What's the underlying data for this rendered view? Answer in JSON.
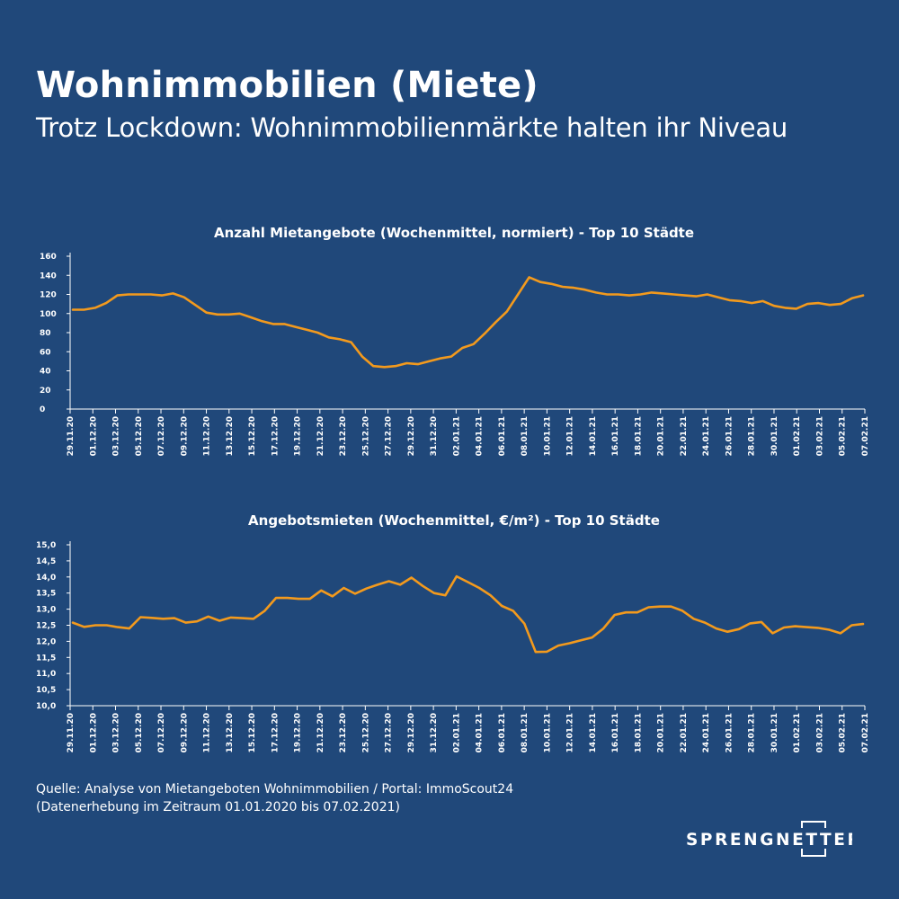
{
  "header": {
    "title": "Wohnimmobilien (Miete)",
    "subtitle": "Trotz Lockdown: Wohnimmobilienmärkte halten ihr Niveau"
  },
  "footer": {
    "source_line1": "Quelle: Analyse von Mietangeboten Wohnimmobilien / Portal: ImmoScout24",
    "source_line2": "(Datenerhebung im Zeitraum 01.01.2020 bis  07.02.2021)",
    "logo_text": "SPRENGNETTER"
  },
  "colors": {
    "background": "#20487a",
    "line": "#f39a1d",
    "text": "#ffffff",
    "axis": "#ffffff"
  },
  "chart_data": [
    {
      "type": "line",
      "title": "Anzahl Mietangebote (Wochenmittel, normiert) - Top 10 Städte",
      "xlabel": "",
      "ylabel": "",
      "ylim": [
        0,
        160
      ],
      "yticks": [
        "0",
        "20",
        "40",
        "60",
        "80",
        "100",
        "120",
        "140",
        "160"
      ],
      "xticks": [
        "29.11.20",
        "01.12.20",
        "03.12.20",
        "05.12.20",
        "07.12.20",
        "09.12.20",
        "11.12.20",
        "13.12.20",
        "15.12.20",
        "17.12.20",
        "19.12.20",
        "21.12.20",
        "23.12.20",
        "25.12.20",
        "27.12.20",
        "29.12.20",
        "31.12.20",
        "02.01.21",
        "04.01.21",
        "06.01.21",
        "08.01.21",
        "10.01.21",
        "12.01.21",
        "14.01.21",
        "16.01.21",
        "18.01.21",
        "20.01.21",
        "22.01.21",
        "24.01.21",
        "26.01.21",
        "28.01.21",
        "30.01.21",
        "01.02.21",
        "03.02.21",
        "05.02.21",
        "07.02.21"
      ],
      "grid": false,
      "series": [
        {
          "values": [
            104,
            104,
            106,
            111,
            119,
            120,
            120,
            120,
            119,
            121,
            117,
            109,
            101,
            99,
            99,
            100,
            96,
            92,
            89,
            89,
            86,
            83,
            80,
            75,
            73,
            70,
            55,
            45,
            44,
            45,
            48,
            47,
            50,
            53,
            55,
            64,
            68,
            79,
            91,
            102,
            120,
            138,
            133,
            131,
            128,
            127,
            125,
            122,
            120,
            120,
            119,
            120,
            122,
            121,
            120,
            119,
            118,
            120,
            117,
            114,
            113,
            111,
            113,
            108,
            106,
            105,
            110,
            111,
            109,
            110,
            116,
            119
          ]
        }
      ]
    },
    {
      "type": "line",
      "title": "Angebotsmieten (Wochenmittel, €/m²) - Top 10 Städte",
      "xlabel": "",
      "ylabel": "",
      "ylim": [
        10.0,
        15.0
      ],
      "yticks": [
        "10,0",
        "10,5",
        "11,0",
        "11,5",
        "12,0",
        "12,5",
        "13,0",
        "13,5",
        "14,0",
        "14,5",
        "15,0"
      ],
      "xticks": [
        "29.11.20",
        "01.12.20",
        "03.12.20",
        "05.12.20",
        "07.12.20",
        "09.12.20",
        "11.12.20",
        "13.12.20",
        "15.12.20",
        "17.12.20",
        "19.12.20",
        "21.12.20",
        "23.12.20",
        "25.12.20",
        "27.12.20",
        "29.12.20",
        "31.12.20",
        "02.01.21",
        "04.01.21",
        "06.01.21",
        "08.01.21",
        "10.01.21",
        "12.01.21",
        "14.01.21",
        "16.01.21",
        "18.01.21",
        "20.01.21",
        "22.01.21",
        "24.01.21",
        "26.01.21",
        "28.01.21",
        "30.01.21",
        "01.02.21",
        "03.02.21",
        "05.02.21",
        "07.02.21"
      ],
      "grid": false,
      "series": [
        {
          "values": [
            12.58,
            12.45,
            12.5,
            12.5,
            12.44,
            12.4,
            12.75,
            12.73,
            12.7,
            12.72,
            12.58,
            12.62,
            12.77,
            12.64,
            12.74,
            12.72,
            12.7,
            12.95,
            13.35,
            13.35,
            13.32,
            13.32,
            13.58,
            13.4,
            13.66,
            13.48,
            13.64,
            13.76,
            13.87,
            13.76,
            13.98,
            13.72,
            13.5,
            13.43,
            14.02,
            13.84,
            13.66,
            13.43,
            13.1,
            12.95,
            12.55,
            11.67,
            11.68,
            11.87,
            11.94,
            12.03,
            12.12,
            12.4,
            12.82,
            12.9,
            12.9,
            13.06,
            13.08,
            13.08,
            12.95,
            12.7,
            12.58,
            12.4,
            12.3,
            12.38,
            12.56,
            12.6,
            12.25,
            12.43,
            12.47,
            12.44,
            12.42,
            12.36,
            12.25,
            12.5,
            12.54
          ]
        }
      ]
    }
  ]
}
